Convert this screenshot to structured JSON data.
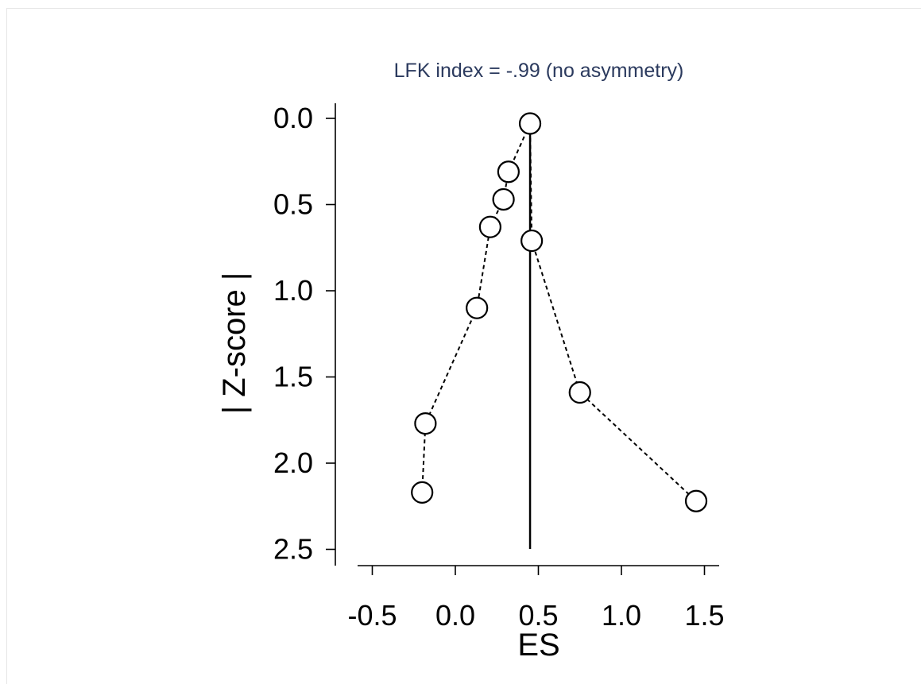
{
  "chart_data": {
    "type": "scatter",
    "title": "LFK index = -.99 (no asymmetry)",
    "xlabel": "ES",
    "ylabel": "| Z-score |",
    "xlim": [
      -0.6,
      1.6
    ],
    "ylim": [
      0,
      2.55
    ],
    "y_inverted": true,
    "xticks": [
      "-0.5",
      "0.0",
      "0.5",
      "1.0",
      "1.5"
    ],
    "yticks": [
      "0.0",
      "0.5",
      "1.0",
      "1.5",
      "2.0",
      "2.5"
    ],
    "reference_line_x": 0.45,
    "grid": false,
    "points": [
      {
        "x": -0.2,
        "y": 2.17
      },
      {
        "x": -0.18,
        "y": 1.77
      },
      {
        "x": 0.13,
        "y": 1.1
      },
      {
        "x": 0.21,
        "y": 0.63
      },
      {
        "x": 0.29,
        "y": 0.47
      },
      {
        "x": 0.32,
        "y": 0.31
      },
      {
        "x": 0.45,
        "y": 0.03
      },
      {
        "x": 0.46,
        "y": 0.71
      },
      {
        "x": 0.75,
        "y": 1.59
      },
      {
        "x": 1.45,
        "y": 2.22
      }
    ]
  }
}
